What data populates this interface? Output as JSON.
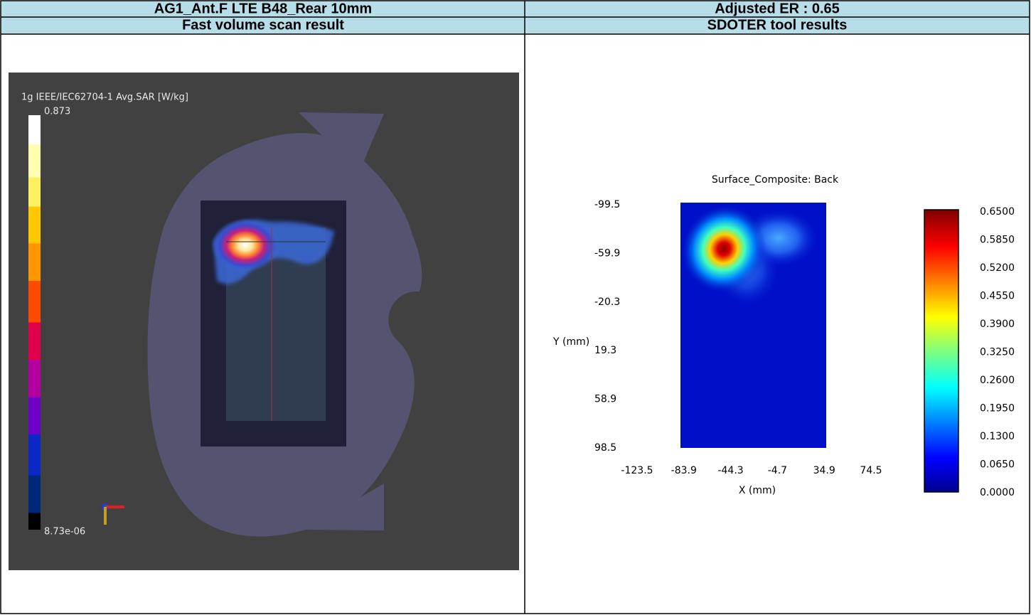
{
  "table": {
    "rows": [
      [
        "AG1_Ant.F LTE B48_Rear 10mm",
        "Adjusted ER : 0.65"
      ],
      [
        "Fast volume scan result",
        "SDOTER tool results"
      ]
    ]
  },
  "left_image": {
    "colorbar_label": "1g IEEE/IEC62704-1 Avg.SAR [W/kg]",
    "colorbar_max": "0.873",
    "colorbar_min": "8.73e-06"
  },
  "right_plot": {
    "title": "Surface_Composite: Back",
    "y_label": "Y (mm)",
    "x_label": "X (mm)",
    "y_tick_labels": [
      "-99.5",
      "-59.9",
      "-20.3",
      "19.3",
      "58.9",
      "98.5"
    ],
    "x_tick_labels": [
      "-123.5",
      "-83.9",
      "-44.3",
      "-4.7",
      "34.9",
      "74.5"
    ],
    "colorbar_labels": [
      "0.6500",
      "0.5850",
      "0.5200",
      "0.4550",
      "0.3900",
      "0.3250",
      "0.2600",
      "0.1950",
      "0.1300",
      "0.0650",
      "0.0000"
    ]
  }
}
